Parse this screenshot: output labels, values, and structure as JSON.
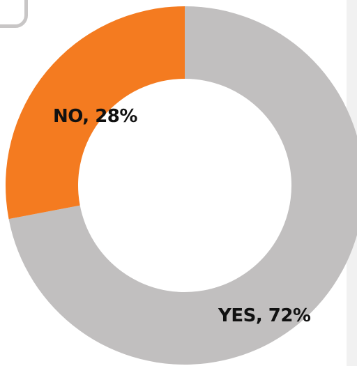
{
  "chart_data": {
    "type": "pie",
    "variant": "donut",
    "categories": [
      "YES",
      "NO"
    ],
    "values": [
      72,
      28
    ],
    "unit": "%",
    "data_labels": [
      "YES, 72%",
      "NO, 28%"
    ],
    "colors": {
      "YES": "#c1bfbf",
      "NO": "#f47b20"
    },
    "start_angle_deg": 0,
    "direction": "clockwise",
    "legend": "none",
    "title": ""
  },
  "colors": {
    "background": "#ffffff",
    "frame": "#c8c6c6",
    "right_strip": "#f1f1f1",
    "label_text": "#111111"
  }
}
